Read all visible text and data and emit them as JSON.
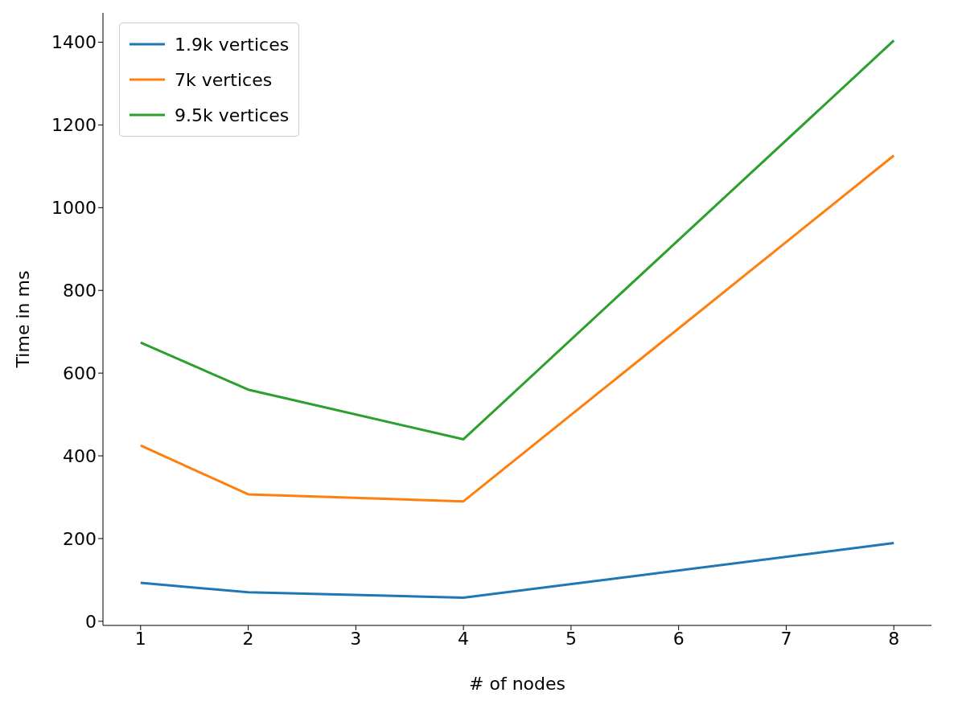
{
  "chart_data": {
    "type": "line",
    "xlabel": "# of nodes",
    "ylabel": "Time in ms",
    "x": [
      1,
      2,
      4,
      8
    ],
    "series": [
      {
        "name": "1.9k vertices",
        "color": "#1f77b4",
        "values": [
          93,
          70,
          57,
          189
        ]
      },
      {
        "name": "7k vertices",
        "color": "#ff7f0e",
        "values": [
          425,
          307,
          290,
          1126
        ]
      },
      {
        "name": "9.5k vertices",
        "color": "#2ca02c",
        "values": [
          674,
          560,
          440,
          1404
        ]
      }
    ],
    "xlim": [
      0.65,
      8.35
    ],
    "xticks": [
      1,
      2,
      3,
      4,
      5,
      6,
      7,
      8
    ],
    "ylim": [
      -10,
      1471
    ],
    "yticks": [
      0,
      200,
      400,
      600,
      800,
      1000,
      1200,
      1400
    ],
    "legend": "top left",
    "grid": false,
    "marker": "none",
    "line_style": "solid"
  }
}
